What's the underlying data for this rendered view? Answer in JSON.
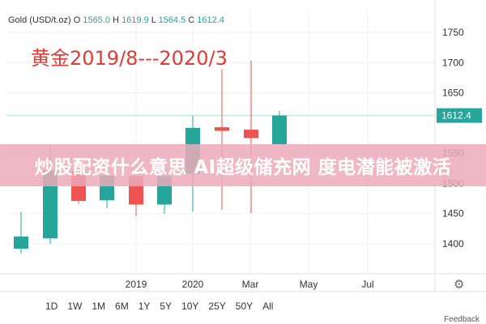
{
  "legend": {
    "symbol": "Gold (USD/t.oz)",
    "o_label": "O",
    "o": "1565.0",
    "h_label": "H",
    "h": "1619.9",
    "l_label": "L",
    "l": "1564.5",
    "c_label": "C",
    "c": "1612.4"
  },
  "annotation": "黄金2019/8---2020/3",
  "banner": "炒股配资什么意思 AI超级储充网 度电潜能被激活",
  "ranges": [
    "1D",
    "1W",
    "1M",
    "6M",
    "1Y",
    "5Y",
    "10Y",
    "25Y",
    "50Y",
    "All"
  ],
  "feedback": "Feedback",
  "colors": {
    "up": "#26a69a",
    "down": "#ef5350",
    "price_tag": "#26a69a"
  },
  "icons": {
    "settings": "gear-icon"
  },
  "chart_data": {
    "type": "candlestick",
    "title": "",
    "y_ticks": [
      1400,
      1450,
      1500,
      1550,
      1650,
      1700,
      1750
    ],
    "y_range": [
      1360,
      1780
    ],
    "x_ticks": [
      "2019",
      "2020",
      "Mar",
      "May",
      "Jul"
    ],
    "last_price": "1612.4",
    "candles": [
      {
        "o": 1392,
        "h": 1453,
        "l": 1384,
        "c": 1412
      },
      {
        "o": 1409,
        "h": 1565,
        "l": 1400,
        "c": 1522
      },
      {
        "o": 1520,
        "h": 1537,
        "l": 1466,
        "c": 1471
      },
      {
        "o": 1472,
        "h": 1520,
        "l": 1459,
        "c": 1513
      },
      {
        "o": 1512,
        "h": 1515,
        "l": 1446,
        "c": 1465
      },
      {
        "o": 1465,
        "h": 1520,
        "l": 1450,
        "c": 1512
      },
      {
        "o": 1516,
        "h": 1612,
        "l": 1453,
        "c": 1592
      },
      {
        "o": 1593,
        "h": 1689,
        "l": 1456,
        "c": 1587
      },
      {
        "o": 1589,
        "h": 1703,
        "l": 1451,
        "c": 1575
      },
      {
        "o": 1565,
        "h": 1619.9,
        "l": 1564.5,
        "c": 1612.4
      }
    ]
  }
}
